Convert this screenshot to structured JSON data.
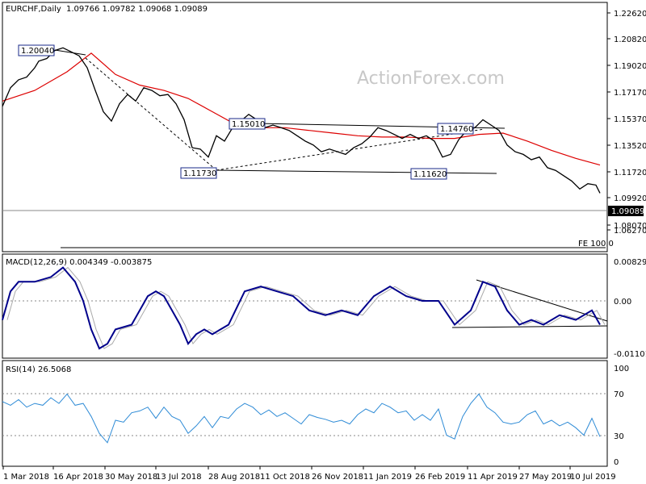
{
  "chart_data": [
    {
      "type": "candlestick",
      "title": "EURCHF,Daily",
      "ohlc_header": "1.09766 1.09782 1.09068 1.09089",
      "watermark": "ActionForex.com",
      "ylim": [
        1.0627,
        1.2262
      ],
      "y_ticks": [
        "1.22620",
        "1.20820",
        "1.19020",
        "1.17170",
        "1.15370",
        "1.13520",
        "1.11720",
        "1.09920",
        "1.08070",
        "1.06270"
      ],
      "current_price": "1.09089",
      "level_labels": [
        "1.20040",
        "1.15010",
        "1.14760",
        "1.11730",
        "1.11620"
      ],
      "fe_label": "FE 100.0",
      "series": [
        {
          "name": "price",
          "x": [
            0,
            10,
            20,
            30,
            40,
            45,
            55,
            65,
            75,
            85,
            95,
            105,
            115,
            125,
            135,
            145,
            155,
            165,
            175,
            185,
            195,
            205,
            215,
            225,
            235,
            245,
            255,
            265,
            275,
            285,
            295,
            305,
            315,
            325,
            335,
            345,
            355,
            365,
            375,
            385,
            395,
            405,
            415,
            425,
            435,
            445,
            455,
            465,
            475,
            485,
            495,
            505,
            515,
            525,
            535,
            545,
            555,
            565,
            575,
            585,
            595,
            605,
            615,
            625,
            635,
            645,
            655,
            665,
            675,
            685,
            695,
            705,
            715,
            725,
            735,
            740
          ],
          "y": [
            1.156,
            1.17,
            1.176,
            1.178,
            1.185,
            1.19,
            1.192,
            1.198,
            1.2,
            1.197,
            1.194,
            1.185,
            1.168,
            1.152,
            1.145,
            1.158,
            1.165,
            1.16,
            1.17,
            1.168,
            1.164,
            1.165,
            1.158,
            1.146,
            1.125,
            1.124,
            1.118,
            1.134,
            1.13,
            1.14,
            1.145,
            1.15,
            1.146,
            1.14,
            1.142,
            1.14,
            1.138,
            1.134,
            1.13,
            1.127,
            1.122,
            1.124,
            1.122,
            1.12,
            1.125,
            1.128,
            1.133,
            1.14,
            1.138,
            1.135,
            1.132,
            1.135,
            1.132,
            1.134,
            1.13,
            1.118,
            1.12,
            1.131,
            1.138,
            1.14,
            1.146,
            1.142,
            1.138,
            1.127,
            1.122,
            1.12,
            1.116,
            1.118,
            1.11,
            1.108,
            1.104,
            1.1,
            1.094,
            1.098,
            1.097,
            1.09089
          ]
        },
        {
          "name": "ma",
          "x": [
            0,
            40,
            80,
            110,
            140,
            170,
            200,
            230,
            260,
            290,
            320,
            350,
            380,
            410,
            440,
            470,
            500,
            530,
            560,
            590,
            620,
            650,
            680,
            710,
            740
          ],
          "y": [
            1.16,
            1.168,
            1.182,
            1.196,
            1.18,
            1.172,
            1.168,
            1.162,
            1.152,
            1.142,
            1.14,
            1.14,
            1.138,
            1.136,
            1.134,
            1.133,
            1.133,
            1.132,
            1.132,
            1.135,
            1.136,
            1.13,
            1.123,
            1.117,
            1.112
          ]
        }
      ]
    },
    {
      "type": "line",
      "title": "MACD(12,26,9) 0.004349 -0.003875",
      "ylim": [
        -0.011015,
        0.008292
      ],
      "y_ticks": [
        "0.008292",
        "0.00",
        "-0.011015"
      ],
      "series": [
        {
          "name": "macd",
          "x": [
            0,
            10,
            20,
            40,
            60,
            75,
            90,
            100,
            110,
            120,
            130,
            140,
            160,
            180,
            190,
            200,
            210,
            220,
            230,
            240,
            250,
            260,
            270,
            280,
            300,
            320,
            340,
            360,
            380,
            400,
            420,
            440,
            460,
            480,
            500,
            520,
            540,
            560,
            580,
            595,
            610,
            625,
            640,
            655,
            670,
            690,
            710,
            730,
            740
          ],
          "y": [
            -0.004,
            0.002,
            0.004,
            0.004,
            0.005,
            0.007,
            0.004,
            0.0,
            -0.006,
            -0.01,
            -0.009,
            -0.006,
            -0.005,
            0.001,
            0.002,
            0.001,
            -0.002,
            -0.005,
            -0.009,
            -0.007,
            -0.006,
            -0.007,
            -0.006,
            -0.005,
            0.002,
            0.003,
            0.002,
            0.001,
            -0.002,
            -0.003,
            -0.002,
            -0.003,
            0.001,
            0.003,
            0.001,
            0.0,
            0.0,
            -0.005,
            -0.002,
            0.004,
            0.003,
            -0.002,
            -0.005,
            -0.004,
            -0.005,
            -0.003,
            -0.004,
            -0.002,
            -0.005
          ]
        }
      ]
    },
    {
      "type": "line",
      "title": "RSI(14) 26.5068",
      "ylim": [
        0,
        100
      ],
      "y_ticks": [
        "100",
        "70",
        "30",
        "0"
      ],
      "series": [
        {
          "name": "rsi",
          "x": [
            0,
            10,
            20,
            30,
            40,
            50,
            60,
            70,
            80,
            90,
            100,
            110,
            120,
            130,
            140,
            150,
            160,
            170,
            180,
            190,
            200,
            210,
            220,
            230,
            240,
            250,
            260,
            270,
            280,
            290,
            300,
            310,
            320,
            330,
            340,
            350,
            360,
            370,
            380,
            390,
            400,
            410,
            420,
            430,
            440,
            450,
            460,
            470,
            480,
            490,
            500,
            510,
            520,
            530,
            540,
            550,
            560,
            570,
            580,
            590,
            600,
            610,
            620,
            630,
            640,
            650,
            660,
            670,
            680,
            690,
            700,
            710,
            720,
            730,
            740
          ],
          "y": [
            64,
            60,
            66,
            58,
            62,
            60,
            68,
            62,
            72,
            60,
            62,
            48,
            30,
            20,
            44,
            42,
            52,
            54,
            58,
            46,
            58,
            48,
            44,
            30,
            38,
            48,
            36,
            48,
            46,
            56,
            62,
            58,
            50,
            55,
            48,
            52,
            46,
            40,
            50,
            47,
            45,
            42,
            44,
            40,
            50,
            56,
            52,
            62,
            58,
            52,
            54,
            44,
            50,
            44,
            56,
            28,
            24,
            48,
            62,
            72,
            58,
            52,
            42,
            40,
            42,
            50,
            54,
            40,
            44,
            38,
            42,
            36,
            28,
            46,
            26.5
          ]
        }
      ]
    }
  ],
  "x_axis_labels": [
    "1 Mar 2018",
    "16 Apr 2018",
    "30 May 2018",
    "13 Jul 2018",
    "28 Aug 2018",
    "11 Oct 2018",
    "26 Nov 2018",
    "11 Jan 2019",
    "26 Feb 2019",
    "11 Apr 2019",
    "27 May 2019",
    "10 Jul 2019"
  ],
  "colors": {
    "price": "#000000",
    "ma": "#dd0000",
    "macd": "#00008b",
    "signal": "#aaaaaa",
    "rsi": "#2e8bd6"
  }
}
